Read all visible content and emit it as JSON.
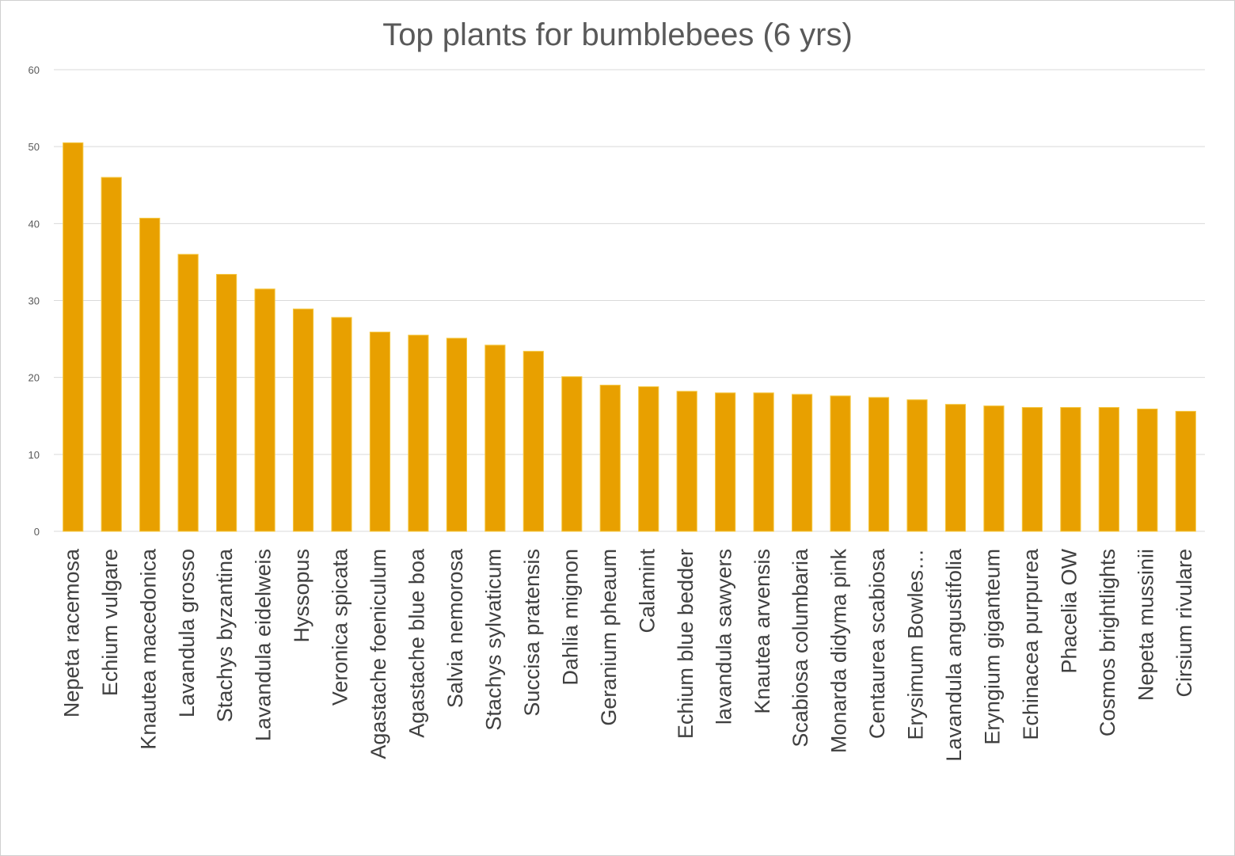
{
  "chart_data": {
    "type": "bar",
    "title": "Top plants for bumblebees (6 yrs)",
    "xlabel": "",
    "ylabel": "",
    "ylim": [
      0,
      60
    ],
    "yticks": [
      0,
      10,
      20,
      30,
      40,
      50,
      60
    ],
    "grid": true,
    "legend": "none",
    "bar_color": "#E8A000",
    "categories": [
      "Nepeta racemosa",
      "Echium vulgare",
      "Knautea macedonica",
      "Lavandula grosso",
      "Stachys byzantina",
      "Lavandula eidelweis",
      "Hyssopus",
      "Veronica spicata",
      "Agastache foeniculum",
      "Agastache blue boa",
      "Salvia nemorosa",
      "Stachys sylvaticum",
      "Succisa pratensis",
      "Dahlia mignon",
      "Geranium pheaum",
      "Calamint",
      "Echium blue bedder",
      "lavandula sawyers",
      "Knautea arvensis",
      "Scabiosa columbaria",
      "Monarda didyma pink",
      "Centaurea scabiosa",
      "Erysimum Bowles…",
      "Lavandula angustifolia",
      "Eryngium giganteum",
      "Echinacea purpurea",
      "Phacelia OW",
      "Cosmos brightlights",
      "Nepeta mussinii",
      "Cirsium rivulare"
    ],
    "values": [
      50.5,
      46.0,
      40.7,
      36.0,
      33.4,
      31.5,
      28.9,
      27.8,
      25.9,
      25.5,
      25.1,
      24.2,
      23.4,
      20.1,
      19.0,
      18.8,
      18.2,
      18.0,
      18.0,
      17.8,
      17.6,
      17.4,
      17.1,
      16.5,
      16.3,
      16.1,
      16.1,
      16.1,
      15.9,
      15.6
    ]
  }
}
